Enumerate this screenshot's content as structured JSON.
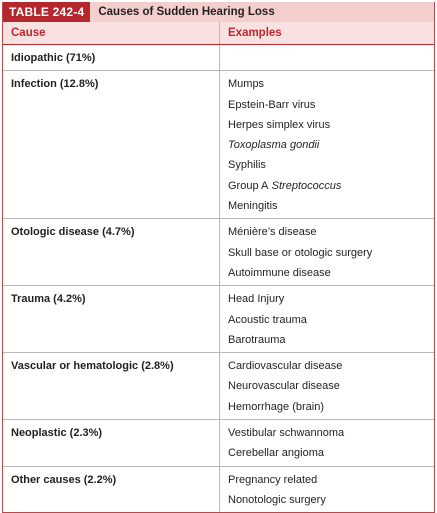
{
  "header": {
    "label": "TABLE 242-4",
    "title": "Causes of Sudden Hearing Loss"
  },
  "table": {
    "columns": [
      "Cause",
      "Examples"
    ],
    "rows": [
      {
        "cause": "Idiopathic (71%)",
        "examples": []
      },
      {
        "cause": "Infection (12.8%)",
        "examples": [
          {
            "segments": [
              {
                "text": "Mumps"
              }
            ]
          },
          {
            "segments": [
              {
                "text": "Epstein-Barr virus"
              }
            ]
          },
          {
            "segments": [
              {
                "text": "Herpes simplex virus"
              }
            ]
          },
          {
            "segments": [
              {
                "text": "Toxoplasma gondii",
                "italic": true
              }
            ]
          },
          {
            "segments": [
              {
                "text": "Syphilis"
              }
            ]
          },
          {
            "segments": [
              {
                "text": "Group A"
              },
              {
                "text": "Streptococcus",
                "italic": true
              }
            ]
          },
          {
            "segments": [
              {
                "text": "Meningitis"
              }
            ]
          }
        ]
      },
      {
        "cause": "Otologic disease (4.7%)",
        "examples": [
          {
            "segments": [
              {
                "text": "Ménière’s disease"
              }
            ]
          },
          {
            "segments": [
              {
                "text": "Skull base or otologic surgery"
              }
            ]
          },
          {
            "segments": [
              {
                "text": "Autoimmune disease"
              }
            ]
          }
        ]
      },
      {
        "cause": "Trauma (4.2%)",
        "examples": [
          {
            "segments": [
              {
                "text": "Head Injury"
              }
            ]
          },
          {
            "segments": [
              {
                "text": "Acoustic trauma"
              }
            ]
          },
          {
            "segments": [
              {
                "text": "Barotrauma"
              }
            ]
          }
        ]
      },
      {
        "cause": "Vascular or hematologic (2.8%)",
        "examples": [
          {
            "segments": [
              {
                "text": "Cardiovascular disease"
              }
            ]
          },
          {
            "segments": [
              {
                "text": "Neurovascular disease"
              }
            ]
          },
          {
            "segments": [
              {
                "text": "Hemorrhage (brain)"
              }
            ]
          }
        ]
      },
      {
        "cause": "Neoplastic (2.3%)",
        "examples": [
          {
            "segments": [
              {
                "text": "Vestibular schwannoma"
              }
            ]
          },
          {
            "segments": [
              {
                "text": "Cerebellar angioma"
              }
            ]
          }
        ]
      },
      {
        "cause": "Other causes (2.2%)",
        "examples": [
          {
            "segments": [
              {
                "text": "Pregnancy related"
              }
            ]
          },
          {
            "segments": [
              {
                "text": "Nonotologic surgery"
              }
            ]
          }
        ]
      }
    ]
  }
}
